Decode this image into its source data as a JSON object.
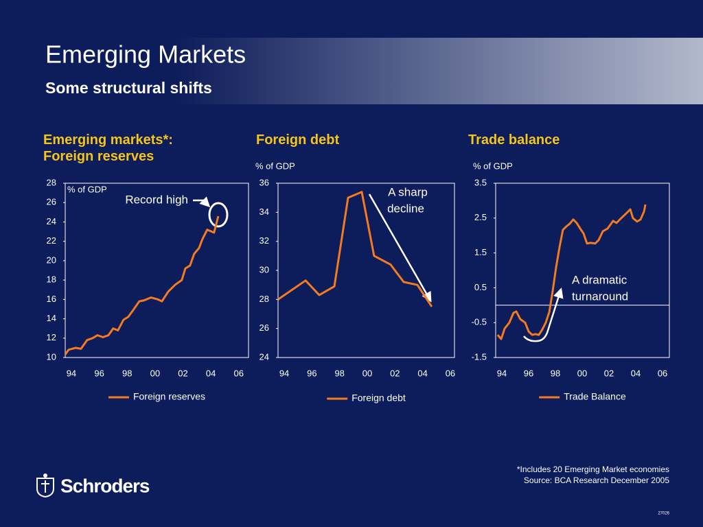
{
  "header": {
    "title": "Emerging Markets",
    "subtitle": "Some structural shifts"
  },
  "chart_data": [
    {
      "type": "line",
      "title": [
        "Emerging markets*:",
        "Foreign reserves"
      ],
      "unit_label": "% of GDP",
      "unit_inside": true,
      "annotations": [
        "Record high"
      ],
      "xlim": [
        1993.56,
        2006.7
      ],
      "xticks": [
        {
          "value": 1994,
          "label": "94"
        },
        {
          "value": 1996,
          "label": "96"
        },
        {
          "value": 1998,
          "label": "98"
        },
        {
          "value": 2000,
          "label": "00"
        },
        {
          "value": 2002,
          "label": "02"
        },
        {
          "value": 2004,
          "label": "04"
        },
        {
          "value": 2006,
          "label": "06"
        }
      ],
      "ylim": [
        10,
        28
      ],
      "yticks": [
        10,
        12,
        14,
        16,
        18,
        20,
        22,
        24,
        26,
        28
      ],
      "x": [
        1993.56,
        1993.8,
        1994.3,
        1994.69,
        1995.13,
        1995.52,
        1995.87,
        1996.26,
        1996.66,
        1997.0,
        1997.34,
        1997.74,
        1998.08,
        1998.48,
        1998.87,
        1999.21,
        1999.71,
        2000.2,
        2000.49,
        2000.94,
        2001.43,
        2001.92,
        2002.17,
        2002.51,
        2002.8,
        2003.15,
        2003.39,
        2003.74,
        2004.23,
        2004.53
      ],
      "series": [
        {
          "name": "Foreign reserves",
          "color": "#f47b20",
          "values": [
            10.3,
            10.8,
            11.0,
            10.9,
            11.8,
            12.0,
            12.3,
            12.1,
            12.3,
            13.0,
            12.8,
            13.9,
            14.2,
            15.0,
            15.8,
            15.9,
            16.2,
            16.0,
            15.8,
            16.8,
            17.5,
            18.0,
            19.2,
            19.5,
            20.7,
            21.3,
            22.2,
            23.2,
            22.9,
            24.6
          ]
        }
      ]
    },
    {
      "type": "line",
      "title": [
        "Foreign debt"
      ],
      "unit_label": "% of GDP",
      "unit_inside": false,
      "annotations": [
        "A sharp",
        "decline"
      ],
      "xlim": [
        1993.55,
        2006.3
      ],
      "xticks": [
        {
          "value": 1994,
          "label": "94"
        },
        {
          "value": 1996,
          "label": "96"
        },
        {
          "value": 1998,
          "label": "98"
        },
        {
          "value": 2000,
          "label": "00"
        },
        {
          "value": 2002,
          "label": "02"
        },
        {
          "value": 2004,
          "label": "04"
        },
        {
          "value": 2006,
          "label": "06"
        }
      ],
      "ylim": [
        24,
        36
      ],
      "yticks": [
        24,
        26,
        28,
        30,
        32,
        34,
        36
      ],
      "x": [
        1993.55,
        1995.54,
        1996.53,
        1997.62,
        1998.61,
        1999.6,
        2000.49,
        2001.68,
        2002.63,
        2003.62,
        2004.66
      ],
      "series": [
        {
          "name": "Foreign debt",
          "color": "#f47b20",
          "values": [
            28.0,
            29.3,
            28.3,
            28.9,
            35.0,
            35.4,
            31.0,
            30.4,
            29.2,
            29.0,
            27.5
          ]
        }
      ]
    },
    {
      "type": "line",
      "title": [
        "Trade balance"
      ],
      "unit_label": "% of GDP",
      "unit_inside": false,
      "zero_line": true,
      "annotations": [
        "A dramatic",
        "turnaround"
      ],
      "xlim": [
        1993.54,
        2006.51
      ],
      "xticks": [
        {
          "value": 1994,
          "label": "94"
        },
        {
          "value": 1996,
          "label": "96"
        },
        {
          "value": 1998,
          "label": "98"
        },
        {
          "value": 2000,
          "label": "00"
        },
        {
          "value": 2002,
          "label": "02"
        },
        {
          "value": 2004,
          "label": "04"
        },
        {
          "value": 2006,
          "label": "06"
        }
      ],
      "ylim": [
        -1.5,
        3.5
      ],
      "yticks": [
        -1.5,
        -0.5,
        0.5,
        1.5,
        2.5,
        3.5
      ],
      "x": [
        1993.69,
        1993.95,
        1994.21,
        1994.56,
        1994.87,
        1995.08,
        1995.38,
        1995.74,
        1996.0,
        1996.26,
        1996.51,
        1996.77,
        1997.03,
        1997.28,
        1997.54,
        1997.79,
        1998.05,
        1998.31,
        1998.56,
        1998.82,
        1999.08,
        1999.33,
        1999.59,
        1999.85,
        2000.1,
        2000.36,
        2000.62,
        2000.97,
        2001.23,
        2001.54,
        2001.9,
        2002.31,
        2002.56,
        2002.92,
        2003.28,
        2003.59,
        2003.79,
        2004.1,
        2004.36,
        2004.62,
        2004.72
      ],
      "series": [
        {
          "name": "Trade Balance",
          "color": "#f47b20",
          "values": [
            -0.85,
            -0.97,
            -0.67,
            -0.5,
            -0.22,
            -0.18,
            -0.4,
            -0.5,
            -0.75,
            -0.85,
            -0.83,
            -0.85,
            -0.69,
            -0.5,
            -0.2,
            0.39,
            1.08,
            1.67,
            2.16,
            2.26,
            2.34,
            2.46,
            2.36,
            2.2,
            2.06,
            1.77,
            1.79,
            1.77,
            1.87,
            2.12,
            2.2,
            2.42,
            2.36,
            2.5,
            2.63,
            2.75,
            2.5,
            2.4,
            2.46,
            2.69,
            2.89
          ]
        }
      ]
    }
  ],
  "footer": {
    "notes": [
      "*Includes 20 Emerging Market economies",
      "Source: BCA Research December 2005"
    ],
    "code": "27026",
    "logo": "Schroders"
  }
}
